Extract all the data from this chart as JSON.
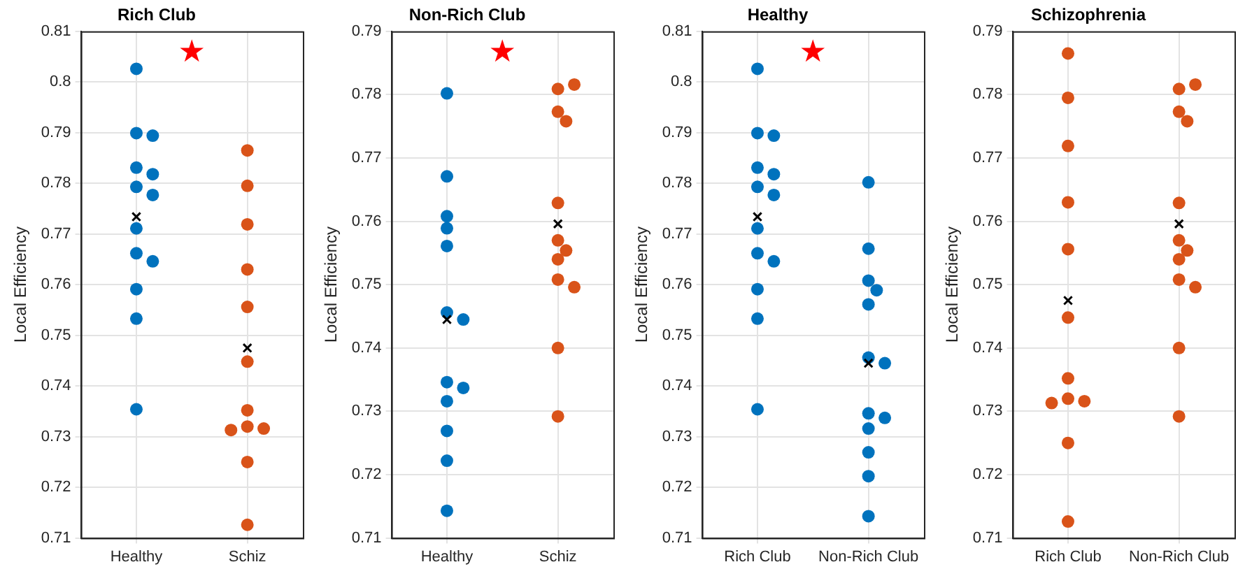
{
  "chart_data": [
    {
      "type": "scatter",
      "title": "Rich Club",
      "ylabel": "Local Efficiency",
      "categories": [
        "Healthy",
        "Schiz"
      ],
      "ylim": [
        0.71,
        0.81
      ],
      "yticks": [
        0.71,
        0.72,
        0.73,
        0.74,
        0.75,
        0.76,
        0.77,
        0.78,
        0.79,
        0.8,
        0.81
      ],
      "grid": true,
      "annotations": [
        "★"
      ],
      "series": [
        {
          "color": "#0072bd",
          "marker": "circle",
          "x": [
            "Healthy",
            "Healthy",
            "Healthy",
            "Healthy",
            "Healthy",
            "Healthy",
            "Healthy",
            "Healthy",
            "Healthy",
            "Healthy",
            "Healthy",
            "Healthy",
            "Healthy"
          ],
          "values": [
            0.8026,
            0.7899,
            0.7894,
            0.7831,
            0.7818,
            0.7793,
            0.7777,
            0.7711,
            0.7662,
            0.7646,
            0.7591,
            0.7533,
            0.7354
          ]
        },
        {
          "color": "#d95319",
          "marker": "circle",
          "x": [
            "Schiz",
            "Schiz",
            "Schiz",
            "Schiz",
            "Schiz",
            "Schiz",
            "Schiz",
            "Schiz",
            "Schiz",
            "Schiz",
            "Schiz",
            "Schiz"
          ],
          "values": [
            0.7865,
            0.7795,
            0.7719,
            0.763,
            0.7556,
            0.7448,
            0.7352,
            0.732,
            0.7316,
            0.7313,
            0.725,
            0.7126
          ]
        },
        {
          "color": "#000000",
          "marker": "cross",
          "x": [
            "Healthy",
            "Schiz"
          ],
          "values": [
            0.7734,
            0.7475
          ]
        }
      ]
    },
    {
      "type": "scatter",
      "title": "Non-Rich Club",
      "ylabel": "Local Efficiency",
      "categories": [
        "Healthy",
        "Schiz"
      ],
      "ylim": [
        0.71,
        0.79
      ],
      "yticks": [
        0.71,
        0.72,
        0.73,
        0.74,
        0.75,
        0.76,
        0.77,
        0.78,
        0.79
      ],
      "grid": true,
      "annotations": [
        "★"
      ],
      "series": [
        {
          "color": "#0072bd",
          "marker": "circle",
          "x": [
            "Healthy",
            "Healthy",
            "Healthy",
            "Healthy",
            "Healthy",
            "Healthy",
            "Healthy",
            "Healthy",
            "Healthy",
            "Healthy",
            "Healthy",
            "Healthy",
            "Healthy"
          ],
          "values": [
            0.7802,
            0.7671,
            0.7608,
            0.7589,
            0.7561,
            0.7456,
            0.7445,
            0.7346,
            0.7337,
            0.7316,
            0.7269,
            0.7222,
            0.7143
          ]
        },
        {
          "color": "#d95319",
          "marker": "circle",
          "x": [
            "Schiz",
            "Schiz",
            "Schiz",
            "Schiz",
            "Schiz",
            "Schiz",
            "Schiz",
            "Schiz",
            "Schiz",
            "Schiz",
            "Schiz",
            "Schiz"
          ],
          "values": [
            0.7809,
            0.7816,
            0.7773,
            0.7758,
            0.7629,
            0.757,
            0.7554,
            0.754,
            0.7508,
            0.7496,
            0.74,
            0.7292
          ]
        },
        {
          "color": "#000000",
          "marker": "cross",
          "x": [
            "Healthy",
            "Schiz"
          ],
          "values": [
            0.7445,
            0.7596
          ]
        }
      ]
    },
    {
      "type": "scatter",
      "title": "Healthy",
      "ylabel": "Local Efficiency",
      "categories": [
        "Rich Club",
        "Non-Rich Club"
      ],
      "ylim": [
        0.71,
        0.81
      ],
      "yticks": [
        0.71,
        0.72,
        0.73,
        0.74,
        0.75,
        0.76,
        0.77,
        0.78,
        0.79,
        0.8,
        0.81
      ],
      "grid": true,
      "annotations": [
        "★"
      ],
      "series": [
        {
          "color": "#0072bd",
          "marker": "circle",
          "x": [
            "Rich Club",
            "Rich Club",
            "Rich Club",
            "Rich Club",
            "Rich Club",
            "Rich Club",
            "Rich Club",
            "Rich Club",
            "Rich Club",
            "Rich Club",
            "Rich Club",
            "Rich Club",
            "Rich Club",
            "Non-Rich Club",
            "Non-Rich Club",
            "Non-Rich Club",
            "Non-Rich Club",
            "Non-Rich Club",
            "Non-Rich Club",
            "Non-Rich Club",
            "Non-Rich Club",
            "Non-Rich Club",
            "Non-Rich Club",
            "Non-Rich Club",
            "Non-Rich Club",
            "Non-Rich Club"
          ],
          "values": [
            0.8026,
            0.7899,
            0.7894,
            0.7831,
            0.7818,
            0.7793,
            0.7777,
            0.7711,
            0.7662,
            0.7646,
            0.7591,
            0.7533,
            0.7354,
            0.7802,
            0.7671,
            0.7608,
            0.7589,
            0.7561,
            0.7456,
            0.7445,
            0.7346,
            0.7337,
            0.7316,
            0.7269,
            0.7222,
            0.7143
          ]
        },
        {
          "color": "#000000",
          "marker": "cross",
          "x": [
            "Rich Club",
            "Non-Rich Club"
          ],
          "values": [
            0.7734,
            0.7445
          ]
        }
      ]
    },
    {
      "type": "scatter",
      "title": "Schizophrenia",
      "ylabel": "Local Efficiency",
      "categories": [
        "Rich Club",
        "Non-Rich Club"
      ],
      "ylim": [
        0.71,
        0.79
      ],
      "yticks": [
        0.71,
        0.72,
        0.73,
        0.74,
        0.75,
        0.76,
        0.77,
        0.78,
        0.79
      ],
      "grid": true,
      "series": [
        {
          "color": "#d95319",
          "marker": "circle",
          "x": [
            "Rich Club",
            "Rich Club",
            "Rich Club",
            "Rich Club",
            "Rich Club",
            "Rich Club",
            "Rich Club",
            "Rich Club",
            "Rich Club",
            "Rich Club",
            "Rich Club",
            "Rich Club",
            "Non-Rich Club",
            "Non-Rich Club",
            "Non-Rich Club",
            "Non-Rich Club",
            "Non-Rich Club",
            "Non-Rich Club",
            "Non-Rich Club",
            "Non-Rich Club",
            "Non-Rich Club",
            "Non-Rich Club",
            "Non-Rich Club",
            "Non-Rich Club"
          ],
          "values": [
            0.7865,
            0.7795,
            0.7719,
            0.763,
            0.7556,
            0.7448,
            0.7352,
            0.732,
            0.7316,
            0.7313,
            0.725,
            0.7126,
            0.7809,
            0.7816,
            0.7773,
            0.7758,
            0.7629,
            0.757,
            0.7554,
            0.754,
            0.7508,
            0.7496,
            0.74,
            0.7292
          ]
        },
        {
          "color": "#000000",
          "marker": "cross",
          "x": [
            "Rich Club",
            "Non-Rich Club"
          ],
          "values": [
            0.7475,
            0.7596
          ]
        }
      ]
    }
  ]
}
